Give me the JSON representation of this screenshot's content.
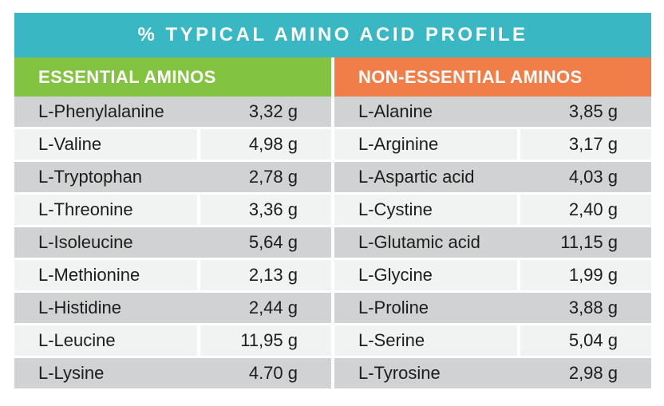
{
  "title": "% TYPICAL AMINO ACID PROFILE",
  "colors": {
    "title_bar_bg": "#39b8c4",
    "essential_header_bg": "#82c341",
    "non_essential_header_bg": "#f17e48",
    "row_dark_bg": "#d0d2d3",
    "row_light_bg": "#f1f2f2",
    "text_color": "#1d1d1b",
    "header_text_color": "#ffffff"
  },
  "chart_data": {
    "type": "table",
    "title": "% TYPICAL AMINO ACID PROFILE",
    "unit": "g",
    "columns": [
      {
        "header": "ESSENTIAL AMINOS",
        "accent_color": "#82c341",
        "rows": [
          {
            "name": "L-Phenylalanine",
            "value": "3,32 g"
          },
          {
            "name": "L-Valine",
            "value": "4,98 g"
          },
          {
            "name": "L-Tryptophan",
            "value": "2,78 g"
          },
          {
            "name": "L-Threonine",
            "value": "3,36 g"
          },
          {
            "name": "L-Isoleucine",
            "value": "5,64 g"
          },
          {
            "name": "L-Methionine",
            "value": "2,13 g"
          },
          {
            "name": "L-Histidine",
            "value": "2,44 g"
          },
          {
            "name": "L-Leucine",
            "value": "11,95 g"
          },
          {
            "name": "L-Lysine",
            "value": "4.70 g"
          }
        ]
      },
      {
        "header": "NON-ESSENTIAL AMINOS",
        "accent_color": "#f17e48",
        "rows": [
          {
            "name": "L-Alanine",
            "value": "3,85 g"
          },
          {
            "name": "L-Arginine",
            "value": "3,17 g"
          },
          {
            "name": "L-Aspartic acid",
            "value": "4,03 g"
          },
          {
            "name": "L-Cystine",
            "value": "2,40 g"
          },
          {
            "name": "L-Glutamic acid",
            "value": "11,15 g"
          },
          {
            "name": "L-Glycine",
            "value": "1,99 g"
          },
          {
            "name": "L-Proline",
            "value": "3,88 g"
          },
          {
            "name": "L-Serine",
            "value": "5,04 g"
          },
          {
            "name": "L-Tyrosine",
            "value": "2,98 g"
          }
        ]
      }
    ]
  }
}
